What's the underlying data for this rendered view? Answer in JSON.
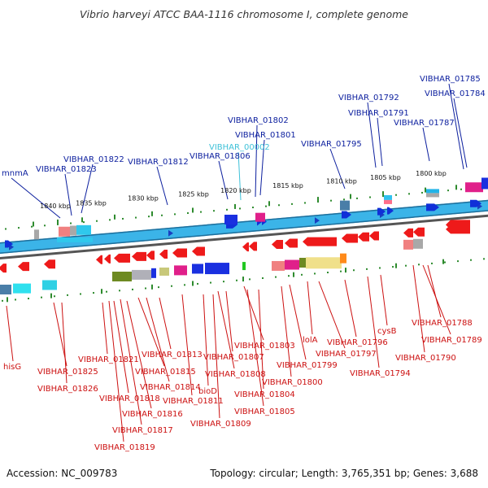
{
  "title": "Vibrio harveyi ATCC BAA-1116 chromosome I, complete genome",
  "accession": "Accession: NC_009783",
  "topology": "Topology: circular; Length: 3,765,351 bp; Genes: 3,688",
  "colors": {
    "top_label": "#0b1e9e",
    "top_label_highlight": "#3fc1d8",
    "bottom_label": "#cc1010",
    "ruler": "#2e8b2e",
    "backbone": "#3bb4e8",
    "backbone_edge": "#1e6f9c",
    "inner_band": "#555555"
  },
  "ruler_ticks": [
    "1840 kbp",
    "1835 kbp",
    "1830 kbp",
    "1825 kbp",
    "1820 kbp",
    "1815 kbp",
    "1810 kbp",
    "1805 kbp",
    "1800 kbp"
  ],
  "top_labels": [
    "mnmA",
    "VIBHAR_01823",
    "VIBHAR_01822",
    "VIBHAR_01812",
    "VIBHAR_01806",
    "VIBHAR_00002",
    "VIBHAR_01802",
    "VIBHAR_01801",
    "VIBHAR_01795",
    "VIBHAR_01792",
    "VIBHAR_01791",
    "VIBHAR_01787",
    "VIBHAR_01785",
    "VIBHAR_01784"
  ],
  "bottom_labels": [
    "hisG",
    "VIBHAR_01825",
    "VIBHAR_01826",
    "VIBHAR_01821",
    "VIBHAR_01818",
    "VIBHAR_01816",
    "VIBHAR_01817",
    "VIBHAR_01819",
    "VIBHAR_01815",
    "VIBHAR_01814",
    "VIBHAR_01813",
    "bioD",
    "VIBHAR_01811",
    "VIBHAR_01809",
    "VIBHAR_01808",
    "VIBHAR_01807",
    "VIBHAR_01803",
    "VIBHAR_01804",
    "VIBHAR_01805",
    "VIBHAR_01800",
    "VIBHAR_01799",
    "lolA",
    "VIBHAR_01797",
    "VIBHAR_01796",
    "VIBHAR_01794",
    "cysB",
    "VIBHAR_01788",
    "VIBHAR_01789",
    "VIBHAR_01790"
  ]
}
